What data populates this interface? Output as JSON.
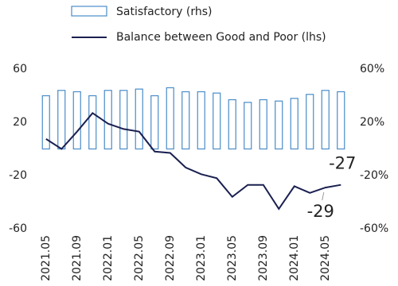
{
  "chart_data": {
    "type": "bar-line",
    "categories": [
      "2021.05",
      null,
      "2021.09",
      null,
      "2022.01",
      null,
      "2022.05",
      null,
      "2022.09",
      null,
      "2023.01",
      null,
      "2023.05",
      null,
      "2023.09",
      null,
      "2024.01",
      null,
      "2024.05",
      null
    ],
    "series": [
      {
        "name": "Satisfactory (rhs)",
        "type": "bar",
        "axis": "y2",
        "color": "#4a8cc8",
        "values": [
          40,
          44,
          43,
          40,
          44,
          44,
          45,
          40,
          46,
          43,
          43,
          42,
          37,
          35,
          37,
          36,
          38,
          41,
          44,
          43
        ]
      },
      {
        "name": "Balance between Good and Poor (lhs)",
        "type": "line",
        "color": "#1a2050",
        "values": [
          7.5,
          0,
          13,
          27,
          19,
          15,
          13,
          -2,
          -3,
          -14,
          -19,
          -22,
          -36,
          -27,
          -27,
          -45,
          -28,
          -33,
          -29,
          -27
        ],
        "labeled_indices": [
          18,
          19
        ]
      }
    ],
    "ylim": [
      -60,
      60
    ],
    "yticks": [
      -60,
      -20,
      20,
      60
    ],
    "y2lim": [
      -60,
      60
    ],
    "y2ticks": [
      {
        "value": -60,
        "label": "-60%"
      },
      {
        "value": -20,
        "label": "-20%"
      },
      {
        "value": 20,
        "label": "20%"
      },
      {
        "value": 60,
        "label": "60%"
      }
    ]
  }
}
